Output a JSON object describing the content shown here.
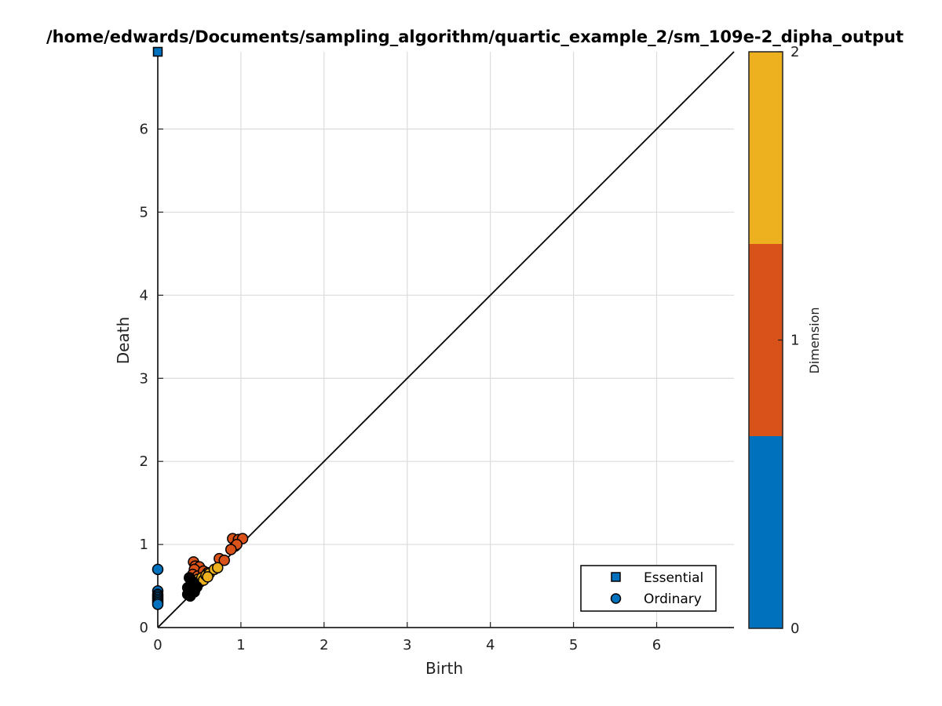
{
  "chart_data": {
    "type": "scatter",
    "title": "/home/edwards/Documents/sampling_algorithm/quartic_example_2/sm_109e-2_dipha_output",
    "xlabel": "Birth",
    "ylabel": "Death",
    "xlim": [
      0,
      6.93
    ],
    "ylim": [
      0,
      6.93
    ],
    "x_ticks": [
      "0",
      "1",
      "2",
      "3",
      "4",
      "5",
      "6"
    ],
    "y_ticks": [
      "0",
      "1",
      "2",
      "3",
      "4",
      "5",
      "6"
    ],
    "grid": true,
    "diagonal": true,
    "legend_position": "bottom-right",
    "legend": [
      {
        "label": "Essential",
        "marker": "square"
      },
      {
        "label": "Ordinary",
        "marker": "circle"
      }
    ],
    "colorbar": {
      "label": "Dimension",
      "ticks": [
        "0",
        "1",
        "2"
      ],
      "colors": [
        "#0071bc",
        "#d95219",
        "#edb120"
      ]
    },
    "series": [
      {
        "dimension": 0,
        "marker": "square",
        "color": "#0071bc",
        "points": [
          [
            0,
            6.93
          ]
        ]
      },
      {
        "dimension": 0,
        "marker": "circle",
        "color": "#0071bc",
        "points": [
          [
            0,
            0.7
          ],
          [
            0,
            0.44
          ],
          [
            0,
            0.4
          ],
          [
            0,
            0.38
          ],
          [
            0,
            0.36
          ],
          [
            0,
            0.34
          ],
          [
            0,
            0.32
          ],
          [
            0,
            0.3
          ],
          [
            0,
            0.28
          ]
        ]
      },
      {
        "dimension": 1,
        "marker": "circle",
        "color": "#d95219",
        "points": [
          [
            0.43,
            0.79
          ],
          [
            0.45,
            0.74
          ],
          [
            0.5,
            0.73
          ],
          [
            0.44,
            0.7
          ],
          [
            0.42,
            0.64
          ],
          [
            0.48,
            0.62
          ],
          [
            0.55,
            0.68
          ],
          [
            0.6,
            0.66
          ],
          [
            0.74,
            0.83
          ],
          [
            0.8,
            0.81
          ],
          [
            0.9,
            1.07
          ],
          [
            0.97,
            1.06
          ],
          [
            1.02,
            1.07
          ],
          [
            0.93,
            0.98
          ],
          [
            0.95,
            1.0
          ],
          [
            0.88,
            0.94
          ]
        ]
      },
      {
        "dimension": 2,
        "marker": "circle",
        "color": "#edb120",
        "points": [
          [
            0.45,
            0.55
          ],
          [
            0.48,
            0.58
          ],
          [
            0.5,
            0.54
          ],
          [
            0.53,
            0.6
          ],
          [
            0.55,
            0.57
          ],
          [
            0.58,
            0.63
          ],
          [
            0.62,
            0.65
          ],
          [
            0.68,
            0.7
          ],
          [
            0.72,
            0.72
          ],
          [
            0.6,
            0.61
          ]
        ]
      },
      {
        "dimension": 0,
        "marker": "circle",
        "color": "#000000",
        "points": [
          [
            0.36,
            0.4
          ],
          [
            0.38,
            0.44
          ],
          [
            0.38,
            0.49
          ],
          [
            0.4,
            0.52
          ],
          [
            0.4,
            0.42
          ],
          [
            0.42,
            0.46
          ],
          [
            0.43,
            0.5
          ],
          [
            0.45,
            0.47
          ],
          [
            0.47,
            0.49
          ],
          [
            0.38,
            0.6
          ],
          [
            0.4,
            0.57
          ],
          [
            0.42,
            0.55
          ],
          [
            0.44,
            0.43
          ],
          [
            0.36,
            0.48
          ],
          [
            0.39,
            0.38
          ]
        ]
      }
    ]
  }
}
